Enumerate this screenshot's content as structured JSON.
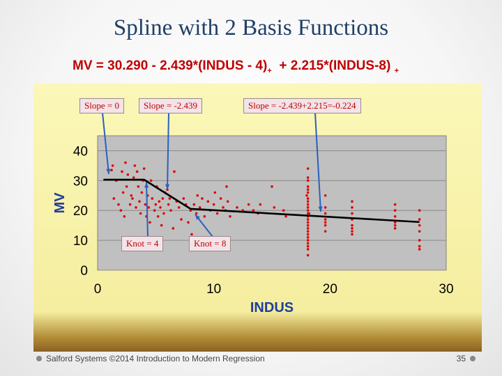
{
  "slide": {
    "title": "Spline with 2 Basis Functions",
    "formula_main1": "MV = 30.290 - 2.439*(INDUS - 4)",
    "formula_sub1": "+",
    "formula_main2": "  + 2.215*(INDUS-8) ",
    "formula_sub2": "+",
    "footer": "Salford Systems ©2014 Introduction to Modern Regression",
    "page_number": "35"
  },
  "annotations": {
    "slope0": "Slope = 0",
    "slope1": "Slope = -2.439",
    "slope2": "Slope = -2.439+2.215=-0.224",
    "knot4": "Knot = 4",
    "knot8": "Knot = 8"
  },
  "colors": {
    "points": "#e00000",
    "plot_area": "#c0c0c0",
    "fit_line": "#000000",
    "arrows": "#2a60c0",
    "title": "#1f3f66",
    "formula": "#c00000"
  },
  "chart_data": {
    "type": "scatter",
    "xlabel": "INDUS",
    "ylabel": "MV",
    "xlim": [
      0,
      30
    ],
    "ylim": [
      0,
      45
    ],
    "xticks": [
      0,
      10,
      20,
      30
    ],
    "yticks": [
      0,
      10,
      20,
      30,
      40
    ],
    "grid": "horizontal",
    "spline_fit": {
      "x": [
        0.5,
        4,
        8,
        27.7
      ],
      "y": [
        30.29,
        30.29,
        20.53,
        16.12
      ]
    },
    "points": [
      [
        1.2,
        33.5
      ],
      [
        1.3,
        35
      ],
      [
        1.4,
        24
      ],
      [
        1.6,
        30
      ],
      [
        1.8,
        22
      ],
      [
        2.0,
        20
      ],
      [
        2.1,
        33
      ],
      [
        2.2,
        26
      ],
      [
        2.3,
        18
      ],
      [
        2.4,
        36
      ],
      [
        2.5,
        28
      ],
      [
        2.6,
        32
      ],
      [
        2.8,
        22
      ],
      [
        2.9,
        25
      ],
      [
        3.0,
        24
      ],
      [
        3.1,
        31
      ],
      [
        3.2,
        35
      ],
      [
        3.3,
        21
      ],
      [
        3.4,
        33
      ],
      [
        3.5,
        28
      ],
      [
        3.6,
        23
      ],
      [
        3.7,
        19
      ],
      [
        3.8,
        26
      ],
      [
        3.9,
        30
      ],
      [
        4.0,
        34
      ],
      [
        4.1,
        22
      ],
      [
        4.2,
        18
      ],
      [
        4.3,
        25
      ],
      [
        4.4,
        21
      ],
      [
        4.5,
        16
      ],
      [
        4.6,
        30
      ],
      [
        4.7,
        24
      ],
      [
        4.9,
        20
      ],
      [
        5.0,
        22
      ],
      [
        5.1,
        28
      ],
      [
        5.2,
        18
      ],
      [
        5.3,
        23
      ],
      [
        5.4,
        21
      ],
      [
        5.5,
        15
      ],
      [
        5.6,
        24
      ],
      [
        5.7,
        19
      ],
      [
        5.8,
        26
      ],
      [
        6.0,
        27
      ],
      [
        6.1,
        22
      ],
      [
        6.2,
        24
      ],
      [
        6.3,
        20
      ],
      [
        6.5,
        14
      ],
      [
        6.6,
        33
      ],
      [
        6.8,
        23
      ],
      [
        7.0,
        21
      ],
      [
        7.2,
        17
      ],
      [
        7.4,
        24
      ],
      [
        7.6,
        22
      ],
      [
        7.8,
        16
      ],
      [
        8.0,
        20
      ],
      [
        8.1,
        12
      ],
      [
        8.3,
        22
      ],
      [
        8.5,
        19
      ],
      [
        8.6,
        25
      ],
      [
        8.8,
        21
      ],
      [
        9.0,
        24
      ],
      [
        9.2,
        18
      ],
      [
        9.5,
        23
      ],
      [
        9.7,
        20
      ],
      [
        10.0,
        22
      ],
      [
        10.1,
        26
      ],
      [
        10.3,
        19
      ],
      [
        10.6,
        24
      ],
      [
        10.8,
        21
      ],
      [
        11.0,
        20
      ],
      [
        11.1,
        28
      ],
      [
        11.2,
        23
      ],
      [
        11.4,
        18
      ],
      [
        12.0,
        21
      ],
      [
        12.5,
        20
      ],
      [
        13.0,
        22
      ],
      [
        13.4,
        20
      ],
      [
        13.8,
        19
      ],
      [
        14.0,
        22
      ],
      [
        15.0,
        28
      ],
      [
        15.2,
        21
      ],
      [
        16.0,
        20
      ],
      [
        16.2,
        18
      ],
      [
        18.1,
        30
      ],
      [
        18.1,
        28
      ],
      [
        18.1,
        26
      ],
      [
        18.1,
        24
      ],
      [
        18.1,
        22
      ],
      [
        18.1,
        21
      ],
      [
        18.1,
        20
      ],
      [
        18.1,
        19
      ],
      [
        18.1,
        18
      ],
      [
        18.1,
        17
      ],
      [
        18.1,
        16
      ],
      [
        18.1,
        15
      ],
      [
        18.1,
        14
      ],
      [
        18.1,
        13
      ],
      [
        18.1,
        12
      ],
      [
        18.1,
        11
      ],
      [
        18.1,
        10
      ],
      [
        18.1,
        9
      ],
      [
        18.1,
        8
      ],
      [
        18.1,
        7
      ],
      [
        18.1,
        5
      ],
      [
        18.1,
        23
      ],
      [
        18.1,
        27
      ],
      [
        18.1,
        31
      ],
      [
        18.1,
        34
      ],
      [
        18.0,
        25
      ],
      [
        18.2,
        19
      ],
      [
        19.6,
        25
      ],
      [
        19.6,
        21
      ],
      [
        19.6,
        19
      ],
      [
        19.6,
        17
      ],
      [
        19.6,
        16
      ],
      [
        19.6,
        15
      ],
      [
        19.6,
        13
      ],
      [
        21.9,
        23
      ],
      [
        21.9,
        21
      ],
      [
        21.9,
        19
      ],
      [
        21.9,
        17
      ],
      [
        21.9,
        15
      ],
      [
        21.9,
        14
      ],
      [
        21.9,
        13
      ],
      [
        21.9,
        12
      ],
      [
        25.6,
        22
      ],
      [
        25.6,
        20
      ],
      [
        25.6,
        18
      ],
      [
        25.6,
        16
      ],
      [
        25.6,
        15
      ],
      [
        25.6,
        14
      ],
      [
        27.7,
        20
      ],
      [
        27.7,
        17
      ],
      [
        27.7,
        15
      ],
      [
        27.7,
        13
      ],
      [
        27.7,
        10
      ],
      [
        27.7,
        8
      ],
      [
        27.7,
        7
      ]
    ]
  }
}
